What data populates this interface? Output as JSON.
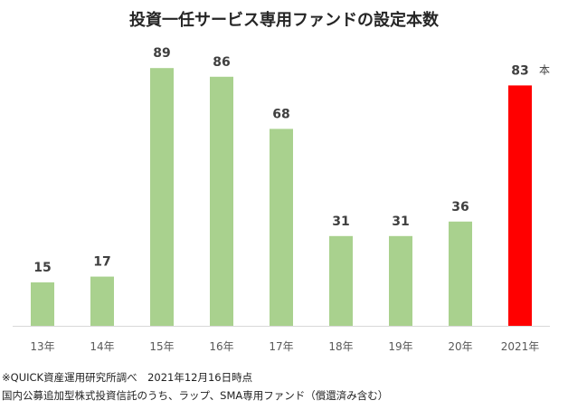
{
  "chart_data": {
    "type": "bar",
    "title": "投資一任サービス専用ファンドの設定本数",
    "categories": [
      "13年",
      "14年",
      "15年",
      "16年",
      "17年",
      "18年",
      "19年",
      "20年",
      "2021年"
    ],
    "values": [
      15,
      17,
      89,
      86,
      68,
      31,
      31,
      36,
      83
    ],
    "data_labels": [
      "15",
      "17",
      "89",
      "86",
      "68",
      "31",
      "31",
      "36",
      "83"
    ],
    "unit_label": "本",
    "colors": {
      "default_bar": "#a9d18e",
      "highlight_bar": "#ff0000",
      "axis": "#d9d9d9",
      "label": "#404040",
      "tick": "#595959"
    },
    "highlight_index": 8,
    "ylim": [
      0,
      100
    ],
    "grid": false,
    "legend": "none"
  },
  "footnotes": [
    "※QUICK資産運用研究所調べ　2021年12月16日時点",
    "国内公募追加型株式投資信託のうち、ラップ、SMA専用ファンド（償還済み含む）"
  ]
}
